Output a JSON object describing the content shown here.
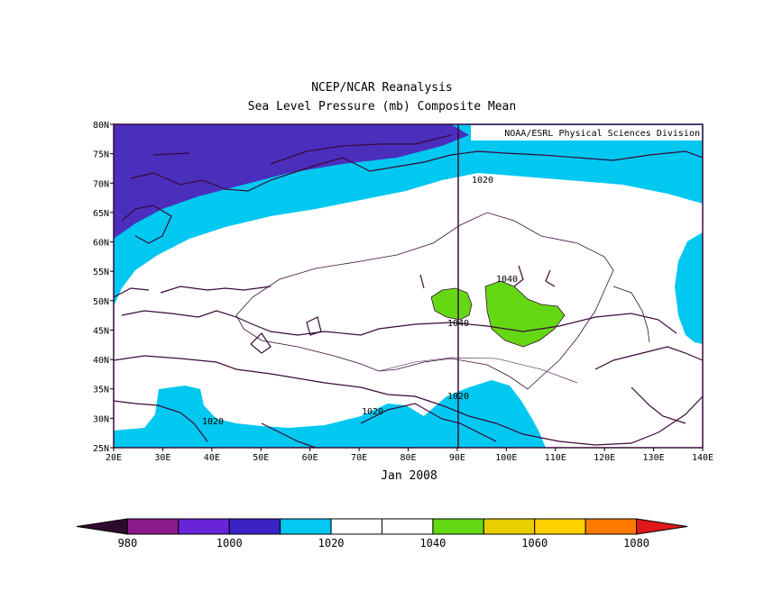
{
  "title": "NCEP/NCAR Reanalysis",
  "subtitle": "Sea Level Pressure (mb) Composite Mean",
  "credit": "NOAA/ESRL Physical Sciences Division",
  "date_label": "Jan 2008",
  "map": {
    "lon_range": [
      20,
      140
    ],
    "lat_range": [
      25,
      80
    ],
    "lon_ticks": [
      "20E",
      "30E",
      "40E",
      "50E",
      "60E",
      "70E",
      "80E",
      "90E",
      "100E",
      "110E",
      "120E",
      "130E",
      "140E"
    ],
    "lat_ticks": [
      "80N",
      "75N",
      "70N",
      "65N",
      "60N",
      "55N",
      "50N",
      "45N",
      "40N",
      "35N",
      "30N",
      "25N"
    ],
    "contour_labels": [
      "1020",
      "1040",
      "1040",
      "1020",
      "1020",
      "1020"
    ],
    "colors": {
      "low": "#4a2fbd",
      "mid": "#00c8f0",
      "high": "#64d812",
      "border": "#3a0a3a",
      "coast": "#3a0a3a"
    }
  },
  "colorbar": {
    "labels": [
      "980",
      "1000",
      "1020",
      "1040",
      "1060",
      "1080"
    ],
    "colors": [
      "#2f0a2f",
      "#8c1a8c",
      "#6a24d8",
      "#3a22c4",
      "#00c8f0",
      "#ffffff",
      "#ffffff",
      "#64d812",
      "#e8d000",
      "#ffd000",
      "#ff7a00",
      "#e01818"
    ]
  }
}
